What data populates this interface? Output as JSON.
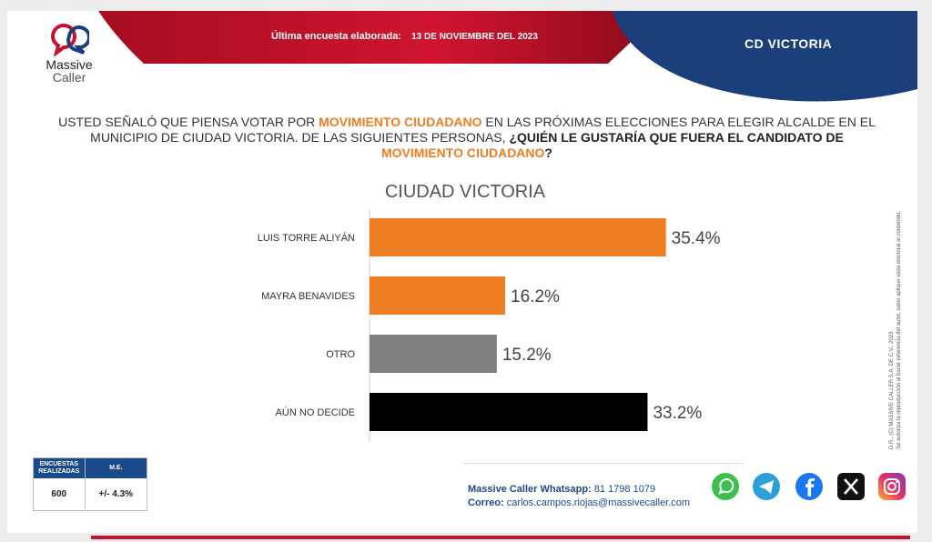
{
  "header": {
    "brand_line1": "Massive",
    "brand_line2": "Caller",
    "survey_label": "Última encuesta elaborada:",
    "survey_date": "13 DE NOVIEMBRE  DEL 2023",
    "city_tag": "CD VICTORIA"
  },
  "question": {
    "part1": "USTED SEÑALÓ QUE PIENSA VOTAR POR ",
    "party1": "MOVIMIENTO CIUDADANO",
    "part2": "  EN LAS PRÓXIMAS ELECCIONES PARA ELEGIR ALCALDE EN EL MUNICIPIO DE CIUDAD VICTORIA. DE LAS SIGUIENTES PERSONAS, ",
    "bold_part": "¿QUIÉN LE GUSTARÍA QUE FUERA EL CANDIDATO DE ",
    "party2": "MOVIMIENTO CIUDADANO",
    "end": "?"
  },
  "chart_data": {
    "type": "bar",
    "orientation": "horizontal",
    "title": "CIUDAD VICTORIA",
    "categories": [
      "LUIS TORRE ALIYÁN",
      "MAYRA BENAVIDES",
      "OTRO",
      "AÚN NO DECIDE"
    ],
    "values": [
      35.4,
      16.2,
      15.2,
      33.2
    ],
    "value_labels": [
      "35.4%",
      "16.2%",
      "15.2%",
      "33.2%"
    ],
    "colors": [
      "#ef7d22",
      "#ef7d22",
      "#7f7f7f",
      "#000000"
    ],
    "xlim": [
      0,
      40
    ],
    "xlabel": "",
    "ylabel": ""
  },
  "side_note": {
    "line1": "D.R., (C) MASSIVE CALLER S.A. DE C.V., 2023",
    "line2": "Se autoriza la reproducción al hacer referencia del autor, salvo aplique veda electoral al contenido."
  },
  "stats": {
    "head1": "ENCUESTAS REALIZADAS",
    "head2": "M.E.",
    "value1": "600",
    "value2": "+/- 4.3%"
  },
  "contact": {
    "whatsapp_label": "Massive Caller Whatsapp:",
    "whatsapp_value": "81 1798 1079",
    "email_label": "Correo:",
    "email_value": "carlos.campos.riojas@massivecaller.com"
  },
  "social_icons": [
    "whatsapp-icon",
    "telegram-icon",
    "facebook-icon",
    "x-icon",
    "instagram-icon"
  ],
  "colors": {
    "brand_red": "#c4122f",
    "brand_blue": "#1a3f7a",
    "accent_orange": "#ef7d22"
  }
}
